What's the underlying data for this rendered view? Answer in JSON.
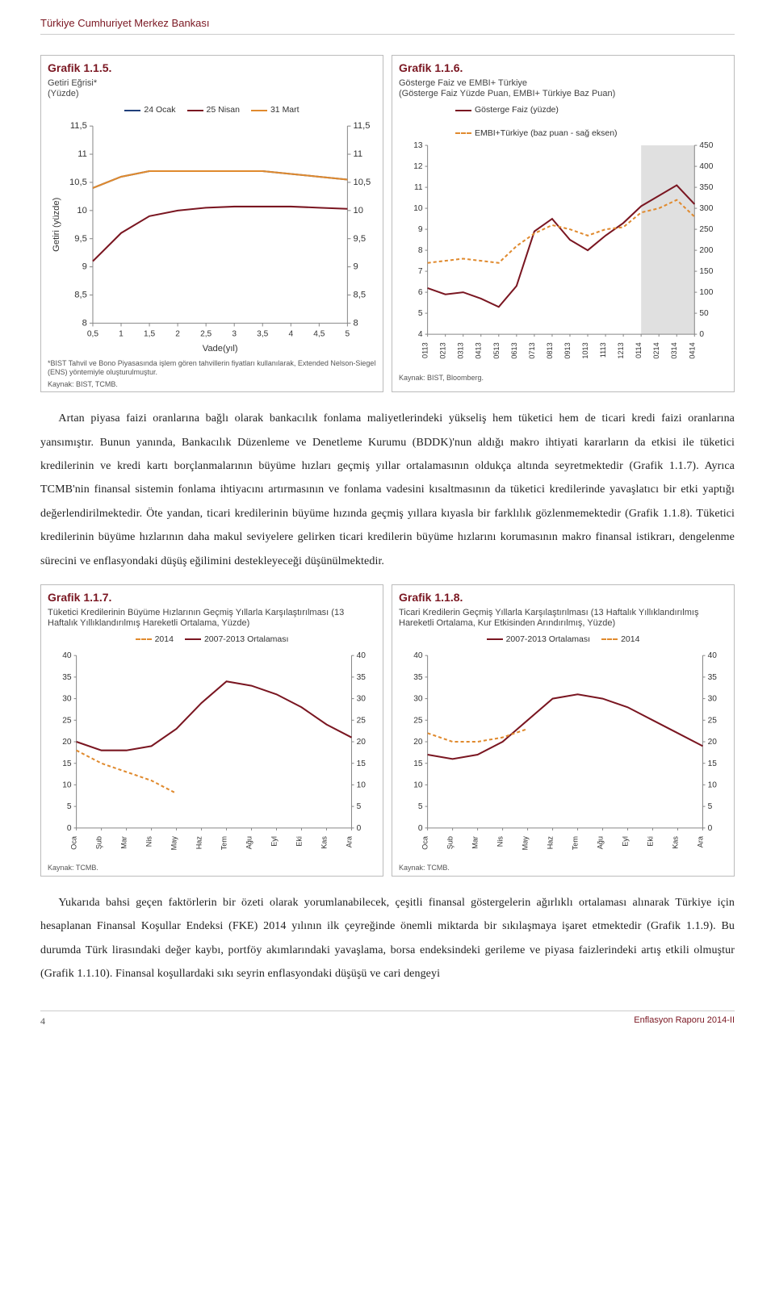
{
  "header": "Türkiye Cumhuriyet Merkez Bankası",
  "footer": {
    "page": "4",
    "report": "Enflasyon Raporu 2014-II"
  },
  "chart115": {
    "type": "line",
    "title": "Grafik 1.1.5.",
    "subtitle": "Getiri Eğrisi*",
    "sub2": "(Yüzde)",
    "ylabel": "Getiri (yüzde)",
    "legend": [
      {
        "label": "24 Ocak",
        "color": "#1f3f7a"
      },
      {
        "label": "25 Nisan",
        "color": "#7a1621"
      },
      {
        "label": "31 Mart",
        "color": "#e08a2e"
      }
    ],
    "xlabel": "Vade(yıl)",
    "xticks": [
      0.5,
      1,
      1.5,
      2,
      2.5,
      3,
      3.5,
      4,
      4.5,
      5
    ],
    "yticks": [
      8,
      8.5,
      9,
      9.5,
      10,
      10.5,
      11,
      11.5
    ],
    "xlim": [
      0.5,
      5
    ],
    "ylim": [
      8,
      11.5
    ],
    "series": [
      {
        "color": "#1f3f7a",
        "width": 2,
        "data": [
          [
            0.5,
            10.4
          ],
          [
            1,
            10.6
          ],
          [
            1.5,
            10.7
          ],
          [
            2,
            10.7
          ],
          [
            2.5,
            10.7
          ],
          [
            3,
            10.7
          ],
          [
            3.5,
            10.7
          ],
          [
            4,
            10.65
          ],
          [
            4.5,
            10.6
          ],
          [
            5,
            10.55
          ]
        ]
      },
      {
        "color": "#7a1621",
        "width": 2,
        "data": [
          [
            0.5,
            9.1
          ],
          [
            1,
            9.6
          ],
          [
            1.5,
            9.9
          ],
          [
            2,
            10.0
          ],
          [
            2.5,
            10.05
          ],
          [
            3,
            10.07
          ],
          [
            3.5,
            10.07
          ],
          [
            4,
            10.07
          ],
          [
            4.5,
            10.05
          ],
          [
            5,
            10.03
          ]
        ]
      },
      {
        "color": "#e08a2e",
        "width": 2,
        "data": [
          [
            0.5,
            10.4
          ],
          [
            1,
            10.6
          ],
          [
            1.5,
            10.7
          ],
          [
            2,
            10.7
          ],
          [
            2.5,
            10.7
          ],
          [
            3,
            10.7
          ],
          [
            3.5,
            10.7
          ],
          [
            4,
            10.65
          ],
          [
            4.5,
            10.6
          ],
          [
            5,
            10.55
          ]
        ]
      }
    ],
    "footnote1": "*BIST Tahvil ve Bono Piyasasında işlem gören tahvillerin fiyatları kullanılarak, Extended Nelson-Siegel (ENS) yöntemiyle oluşturulmuştur.",
    "footnote2": "Kaynak: BIST, TCMB.",
    "gridColor": "#e0e0e0",
    "axisColor": "#888"
  },
  "chart116": {
    "type": "line-dual-axis",
    "title": "Grafik 1.1.6.",
    "subtitle": "Gösterge Faiz ve EMBI+ Türkiye",
    "sub2": "(Gösterge Faiz Yüzde Puan, EMBI+ Türkiye Baz Puan)",
    "legend": [
      {
        "label": "Gösterge Faiz (yüzde)",
        "color": "#7a1621",
        "dash": false
      },
      {
        "label": "EMBI+Türkiye (baz puan - sağ eksen)",
        "color": "#e08a2e",
        "dash": true
      }
    ],
    "xticks": [
      "0113",
      "0213",
      "0313",
      "0413",
      "0513",
      "0613",
      "0713",
      "0813",
      "0913",
      "1013",
      "1113",
      "1213",
      "0114",
      "0214",
      "0314",
      "0414"
    ],
    "ylim_left": [
      4,
      13
    ],
    "yticks_left": [
      4,
      5,
      6,
      7,
      8,
      9,
      10,
      11,
      12,
      13
    ],
    "ylim_right": [
      0,
      450
    ],
    "yticks_right": [
      0,
      50,
      100,
      150,
      200,
      250,
      300,
      350,
      400,
      450
    ],
    "highlightRange": [
      12,
      15
    ],
    "highlightColor": "#e0e0e0",
    "series_left": {
      "color": "#7a1621",
      "width": 2,
      "data": [
        6.2,
        5.9,
        6.0,
        5.7,
        5.3,
        6.3,
        8.9,
        9.5,
        8.5,
        8.0,
        8.7,
        9.3,
        10.1,
        10.6,
        11.1,
        10.2
      ]
    },
    "series_right": {
      "color": "#e08a2e",
      "width": 2,
      "dash": true,
      "data": [
        170,
        175,
        180,
        175,
        170,
        210,
        240,
        260,
        250,
        235,
        250,
        255,
        290,
        300,
        320,
        280
      ]
    },
    "footnote": "Kaynak: BIST, Bloomberg.",
    "gridColor": "#e0e0e0",
    "axisColor": "#888"
  },
  "paragraph1": "Artan piyasa faizi oranlarına bağlı olarak bankacılık fonlama maliyetlerindeki yükseliş hem tüketici hem de ticari kredi faizi oranlarına yansımıştır. Bunun yanında, Bankacılık Düzenleme ve Denetleme Kurumu (BDDK)'nun aldığı makro ihtiyati kararların da etkisi ile tüketici kredilerinin ve kredi kartı borçlanmalarının büyüme hızları geçmiş yıllar ortalamasının oldukça altında seyretmektedir (Grafik 1.1.7). Ayrıca TCMB'nin finansal sistemin fonlama ihtiyacını artırmasının ve fonlama vadesini kısaltmasının da tüketici kredilerinde yavaşlatıcı bir etki yaptığı değerlendirilmektedir. Öte yandan, ticari kredilerinin büyüme hızında geçmiş yıllara kıyasla bir farklılık gözlenmemektedir (Grafik 1.1.8). Tüketici kredilerinin büyüme hızlarının daha makul seviyelere gelirken ticari kredilerin büyüme hızlarını korumasının makro finansal istikrarı, dengelenme sürecini ve enflasyondaki düşüş eğilimini destekleyeceği düşünülmektedir.",
  "chart117": {
    "type": "line",
    "title": "Grafik 1.1.7.",
    "subtitle": "Tüketici Kredilerinin Büyüme Hızlarının Geçmiş Yıllarla Karşılaştırılması (13 Haftalık Yıllıklandırılmış Hareketli Ortalama, Yüzde)",
    "legend": [
      {
        "label": "2014",
        "color": "#e08a2e",
        "dash": true
      },
      {
        "label": "2007-2013 Ortalaması",
        "color": "#7a1621",
        "dash": false
      }
    ],
    "xticks": [
      "Oca",
      "Şub",
      "Mar",
      "Nis",
      "May",
      "Haz",
      "Tem",
      "Ağu",
      "Eyl",
      "Eki",
      "Kas",
      "Ara"
    ],
    "ylim": [
      0,
      40
    ],
    "yticks": [
      0,
      5,
      10,
      15,
      20,
      25,
      30,
      35,
      40
    ],
    "series": [
      {
        "color": "#7a1621",
        "width": 2,
        "dash": false,
        "data": [
          20,
          18,
          18,
          19,
          23,
          29,
          34,
          33,
          31,
          28,
          24,
          21
        ]
      },
      {
        "color": "#e08a2e",
        "width": 2,
        "dash": true,
        "data": [
          18,
          15,
          13,
          11,
          8,
          null,
          null,
          null,
          null,
          null,
          null,
          null
        ]
      }
    ],
    "footnote": "Kaynak: TCMB.",
    "gridColor": "#e0e0e0",
    "axisColor": "#888"
  },
  "chart118": {
    "type": "line",
    "title": "Grafik 1.1.8.",
    "subtitle": "Ticari Kredilerin Geçmiş Yıllarla Karşılaştırılması (13 Haftalık Yıllıklandırılmış Hareketli Ortalama, Kur Etkisinden Arındırılmış, Yüzde)",
    "legend": [
      {
        "label": "2007-2013 Ortalaması",
        "color": "#7a1621",
        "dash": false
      },
      {
        "label": "2014",
        "color": "#e08a2e",
        "dash": true
      }
    ],
    "xticks": [
      "Oca",
      "Şub",
      "Mar",
      "Nis",
      "May",
      "Haz",
      "Tem",
      "Ağu",
      "Eyl",
      "Eki",
      "Kas",
      "Ara"
    ],
    "ylim": [
      0,
      40
    ],
    "yticks": [
      0,
      5,
      10,
      15,
      20,
      25,
      30,
      35,
      40
    ],
    "series": [
      {
        "color": "#7a1621",
        "width": 2,
        "dash": false,
        "data": [
          17,
          16,
          17,
          20,
          25,
          30,
          31,
          30,
          28,
          25,
          22,
          19
        ]
      },
      {
        "color": "#e08a2e",
        "width": 2,
        "dash": true,
        "data": [
          22,
          20,
          20,
          21,
          23,
          null,
          null,
          null,
          null,
          null,
          null,
          null
        ]
      }
    ],
    "footnote": "Kaynak: TCMB.",
    "gridColor": "#e0e0e0",
    "axisColor": "#888"
  },
  "paragraph2": "Yukarıda bahsi geçen faktörlerin bir özeti olarak yorumlanabilecek, çeşitli finansal göstergelerin ağırlıklı ortalaması alınarak Türkiye için hesaplanan Finansal Koşullar Endeksi (FKE) 2014 yılının ilk çeyreğinde önemli miktarda bir sıkılaşmaya işaret etmektedir (Grafik 1.1.9). Bu durumda Türk lirasındaki değer kaybı, portföy akımlarındaki yavaşlama, borsa endeksindeki gerileme ve piyasa faizlerindeki artış etkili olmuştur (Grafik 1.1.10). Finansal koşullardaki sıkı seyrin enflasyondaki düşüşü ve cari dengeyi"
}
